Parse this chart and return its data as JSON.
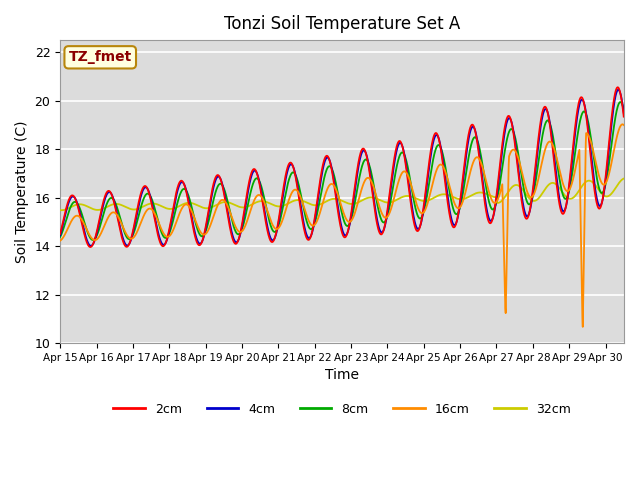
{
  "title": "Tonzi Soil Temperature Set A",
  "xlabel": "Time",
  "ylabel": "Soil Temperature (C)",
  "ylim": [
    10,
    22.5
  ],
  "xlim": [
    0,
    15.5
  ],
  "annotation_text": "TZ_fmet",
  "annotation_color": "#8B0000",
  "annotation_bg": "#FFFFE0",
  "annotation_border": "#B8860B",
  "bg_color": "#DCDCDC",
  "colors": {
    "2cm": "#FF0000",
    "4cm": "#0000CC",
    "8cm": "#00AA00",
    "16cm": "#FF8C00",
    "32cm": "#CCCC00"
  },
  "legend_labels": [
    "2cm",
    "4cm",
    "8cm",
    "16cm",
    "32cm"
  ],
  "xtick_labels": [
    "Apr 15",
    "Apr 16",
    "Apr 17",
    "Apr 18",
    "Apr 19",
    "Apr 20",
    "Apr 21",
    "Apr 22",
    "Apr 23",
    "Apr 24",
    "Apr 25",
    "Apr 26",
    "Apr 27",
    "Apr 28",
    "Apr 29",
    "Apr 30"
  ],
  "ytick_values": [
    10,
    12,
    14,
    16,
    18,
    20,
    22
  ],
  "grid_color": "#FFFFFF",
  "linewidth": 1.3
}
